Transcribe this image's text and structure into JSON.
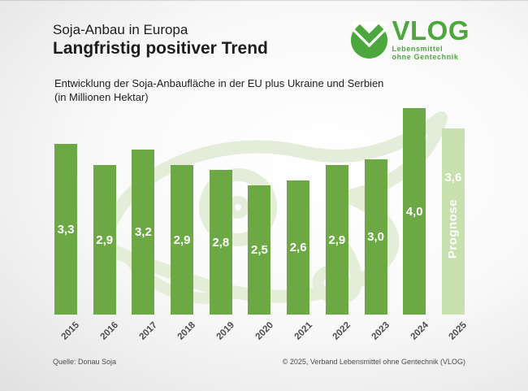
{
  "header": {
    "kicker": "Soja-Anbau in Europa",
    "title": "Langfristig positiver Trend",
    "subtitle_line1": "Entwicklung der Soja-Anbaufläche in der EU plus Ukraine und Serbien",
    "subtitle_line2": "(in Millionen Hektar)"
  },
  "logo": {
    "name": "VLOG",
    "tagline_line1": "Lebensmittel",
    "tagline_line2": "ohne Gentechnik",
    "green": "#4ca73c"
  },
  "chart_data": {
    "type": "bar",
    "title": "Entwicklung der Soja-Anbaufläche in der EU plus Ukraine und Serbien (in Millionen Hektar)",
    "categories": [
      "2015",
      "2016",
      "2017",
      "2018",
      "2019",
      "2020",
      "2021",
      "2022",
      "2023",
      "2024",
      "2025"
    ],
    "values": [
      3.3,
      2.9,
      3.2,
      2.9,
      2.8,
      2.5,
      2.6,
      2.9,
      3.0,
      4.0,
      3.6
    ],
    "value_labels": [
      "3,3",
      "2,9",
      "3,2",
      "2,9",
      "2,8",
      "2,5",
      "2,6",
      "2,9",
      "3,0",
      "4,0",
      "3,6"
    ],
    "unit": "Millionen Hektar",
    "forecast_index": 10,
    "forecast_label": "Prognose",
    "bar_color": "#6ca945",
    "forecast_bar_color": "#c8dfae",
    "ylim": [
      0,
      4.2
    ],
    "grid": false,
    "legend": false
  },
  "footer": {
    "source": "Quelle: Donau Soja",
    "copyright": "© 2025, Verband Lebensmittel ohne Gentechnik (VLOG)"
  }
}
